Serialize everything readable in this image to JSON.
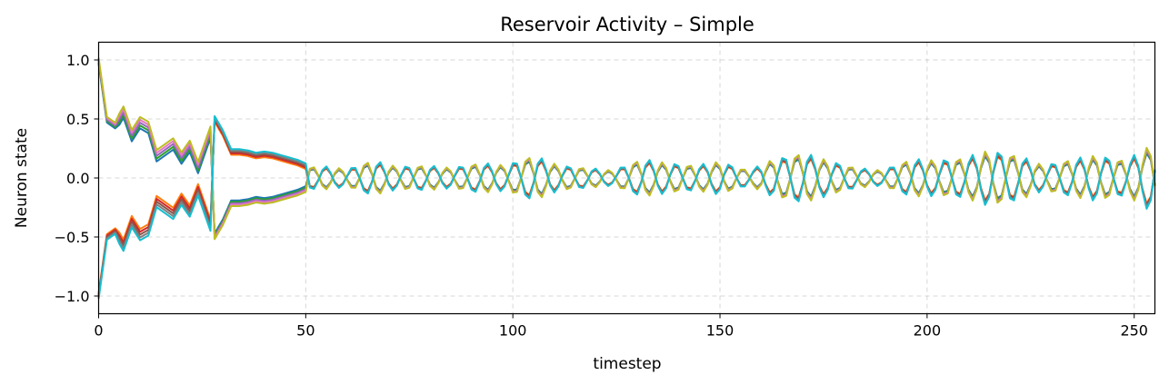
{
  "chart_data": {
    "type": "line",
    "title": "Reservoir Activity – Simple",
    "xlabel": "timestep",
    "ylabel": "Neuron state",
    "xlim": [
      0,
      255
    ],
    "ylim": [
      -1.15,
      1.15
    ],
    "xticks": [
      0,
      50,
      100,
      150,
      200,
      250
    ],
    "yticks": [
      1.0,
      0.5,
      0.0,
      -0.5,
      -1.0
    ],
    "ytick_labels": [
      "1.0",
      "0.5",
      "0.0",
      "−0.5",
      "−1.0"
    ],
    "grid": true,
    "legend": "none",
    "colors": [
      "#1f77b4",
      "#ff7f0e",
      "#2ca02c",
      "#d62728",
      "#9467bd",
      "#8c564b",
      "#e377c2",
      "#7f7f7f",
      "#bcbd22",
      "#17becf"
    ],
    "series_count": 10,
    "envelope_keypoints": {
      "t": [
        0,
        2,
        4,
        6,
        8,
        10,
        12,
        14,
        16,
        18,
        20,
        22,
        24,
        26,
        28,
        30,
        32,
        34,
        36,
        38,
        40,
        42,
        44,
        46,
        48,
        50
      ],
      "amplitude": [
        1.0,
        0.5,
        0.45,
        0.57,
        0.37,
        0.48,
        0.44,
        0.2,
        0.25,
        0.3,
        0.18,
        0.28,
        0.1,
        0.3,
        0.5,
        0.38,
        0.22,
        0.22,
        0.21,
        0.19,
        0.2,
        0.19,
        0.17,
        0.15,
        0.13,
        0.1
      ]
    },
    "late_amplitude_peaks": {
      "t": [
        55,
        60,
        66,
        72,
        79,
        85,
        92,
        98,
        105,
        111,
        118,
        124,
        131,
        137,
        144,
        150,
        157,
        163,
        170,
        176,
        183,
        189,
        196,
        202,
        209,
        215,
        222,
        228,
        235,
        241,
        248,
        255
      ],
      "amplitude": [
        0.09,
        0.07,
        0.14,
        0.09,
        0.1,
        0.08,
        0.12,
        0.1,
        0.18,
        0.1,
        0.08,
        0.06,
        0.15,
        0.12,
        0.1,
        0.13,
        0.06,
        0.15,
        0.2,
        0.14,
        0.08,
        0.06,
        0.15,
        0.14,
        0.16,
        0.22,
        0.18,
        0.1,
        0.15,
        0.18,
        0.14,
        0.28
      ]
    }
  }
}
